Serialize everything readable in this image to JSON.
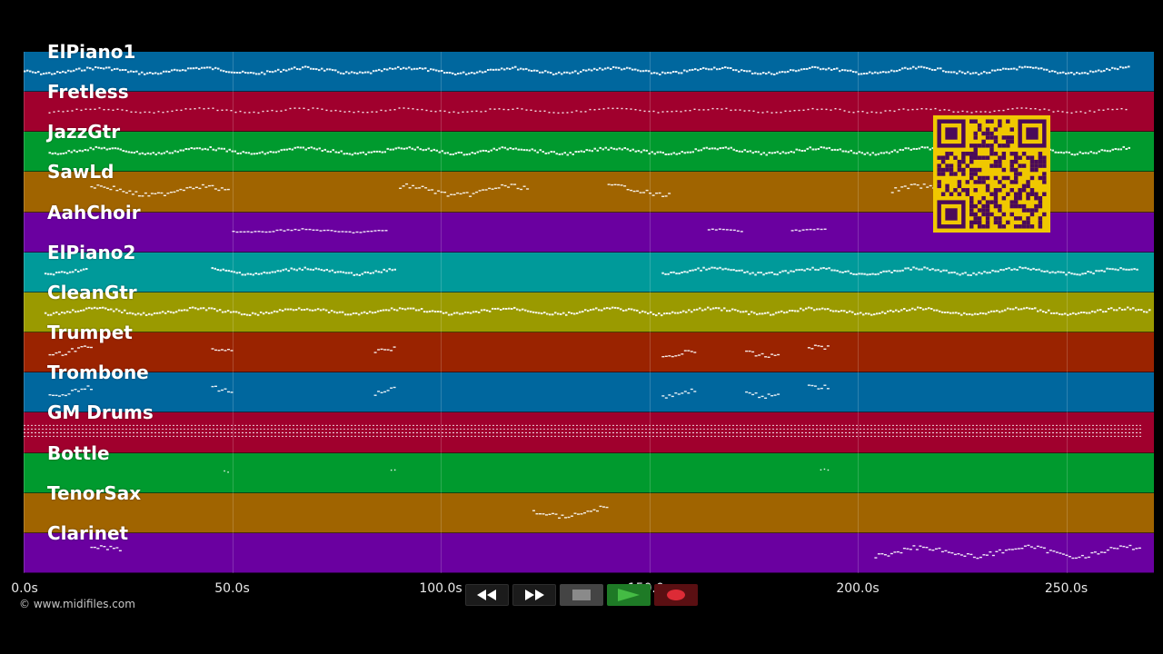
{
  "tracks": [
    {
      "name": "ElPiano1",
      "color": "#00679e",
      "pattern": "dense",
      "segments": [
        [
          0,
          265
        ]
      ]
    },
    {
      "name": "Fretless",
      "color": "#a0002d",
      "pattern": "sparse",
      "segments": [
        [
          6,
          265
        ]
      ]
    },
    {
      "name": "JazzGtr",
      "color": "#009a2e",
      "pattern": "dense",
      "segments": [
        [
          6,
          265
        ]
      ]
    },
    {
      "name": "SawLd",
      "color": "#a06400",
      "pattern": "melody",
      "segments": [
        [
          16,
          49
        ],
        [
          90,
          121
        ],
        [
          140,
          155
        ],
        [
          208,
          235
        ]
      ]
    },
    {
      "name": "AahChoir",
      "color": "#6a00a0",
      "pattern": "chords",
      "segments": [
        [
          50,
          87
        ],
        [
          164,
          172
        ],
        [
          184,
          192
        ]
      ]
    },
    {
      "name": "ElPiano2",
      "color": "#009a9a",
      "pattern": "dense",
      "segments": [
        [
          5,
          15
        ],
        [
          45,
          89
        ],
        [
          153,
          267
        ]
      ]
    },
    {
      "name": "CleanGtr",
      "color": "#9a9a00",
      "pattern": "dense",
      "segments": [
        [
          5,
          270
        ]
      ]
    },
    {
      "name": "Trumpet",
      "color": "#9a2300",
      "pattern": "melody",
      "segments": [
        [
          6,
          16
        ],
        [
          45,
          50
        ],
        [
          84,
          89
        ],
        [
          153,
          161
        ],
        [
          173,
          181
        ],
        [
          188,
          193
        ]
      ]
    },
    {
      "name": "Trombone",
      "color": "#00679e",
      "pattern": "melody",
      "segments": [
        [
          6,
          16
        ],
        [
          45,
          50
        ],
        [
          84,
          89
        ],
        [
          153,
          161
        ],
        [
          173,
          181
        ],
        [
          188,
          193
        ]
      ]
    },
    {
      "name": "GM Drums",
      "color": "#a0002d",
      "pattern": "drums",
      "segments": [
        [
          0,
          268
        ]
      ]
    },
    {
      "name": "Bottle",
      "color": "#009a2e",
      "pattern": "sparse-dots",
      "segments": [
        [
          48,
          49
        ],
        [
          88,
          89
        ],
        [
          191,
          193
        ]
      ]
    },
    {
      "name": "TenorSax",
      "color": "#a06400",
      "pattern": "melody",
      "segments": [
        [
          122,
          140
        ]
      ]
    },
    {
      "name": "Clarinet",
      "color": "#6a00a0",
      "pattern": "melody",
      "segments": [
        [
          16,
          23
        ],
        [
          204,
          268
        ]
      ]
    }
  ],
  "timeline": {
    "start": 0,
    "end": 271,
    "ticks": [
      {
        "value": 0,
        "label": "0.0s"
      },
      {
        "value": 50,
        "label": "50.0s"
      },
      {
        "value": 100,
        "label": "100.0s"
      },
      {
        "value": 150,
        "label": "150.0s"
      },
      {
        "value": 200,
        "label": "200.0s"
      },
      {
        "value": 250,
        "label": "250.0s"
      }
    ]
  },
  "copyright": "© www.midifiles.com",
  "qr": {
    "foreground": "#4a0a5a",
    "background": "#f0c800"
  },
  "transport": {
    "buttons": [
      {
        "name": "rewind-button",
        "icon": "rewind-icon"
      },
      {
        "name": "fast-forward-button",
        "icon": "fast-forward-icon"
      },
      {
        "name": "stop-button",
        "icon": "stop-icon"
      },
      {
        "name": "play-button",
        "icon": "play-icon"
      },
      {
        "name": "record-button",
        "icon": "record-icon"
      }
    ],
    "colors": {
      "play": "#44bb44",
      "record": "#dd2b36",
      "stop": "#8a8a8a"
    }
  }
}
